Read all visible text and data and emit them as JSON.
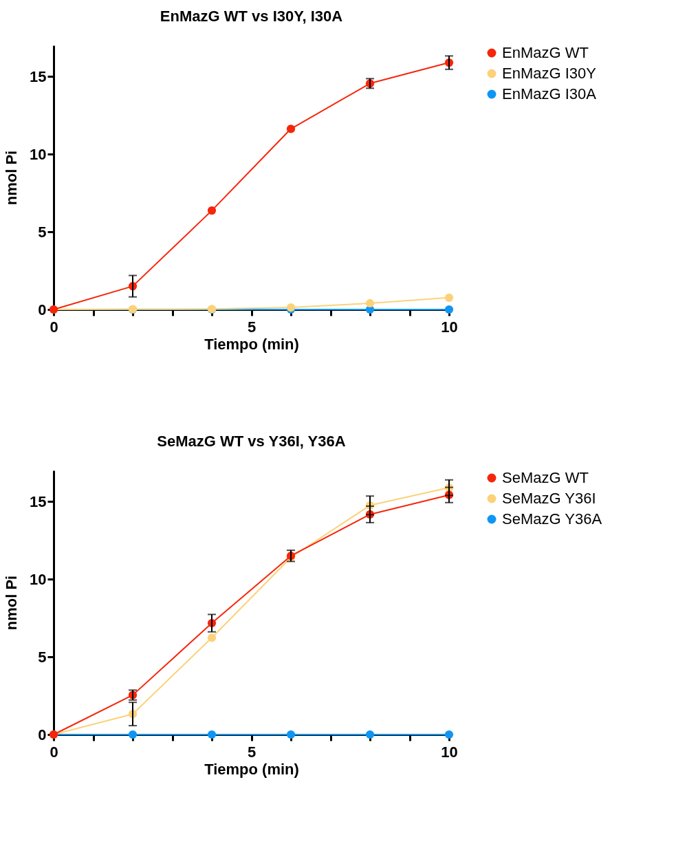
{
  "chart_data": [
    {
      "type": "line",
      "title": "EnMazG WT vs I30Y, I30A",
      "xlabel": "Tiempo (min)",
      "ylabel": "nmol Pi",
      "x": [
        0,
        2,
        4,
        6,
        8,
        10
      ],
      "xlim": [
        0,
        10
      ],
      "xticks": [
        0,
        {
          "value": 1,
          "label": null
        },
        {
          "value": 2,
          "label": null
        },
        {
          "value": 3,
          "label": null
        },
        {
          "value": 4,
          "label": null
        },
        5,
        {
          "value": 6,
          "label": null
        },
        {
          "value": 7,
          "label": null
        },
        {
          "value": 8,
          "label": null
        },
        {
          "value": 9,
          "label": null
        },
        10
      ],
      "ylim": [
        0,
        17
      ],
      "yticks": [
        0,
        5,
        10,
        15
      ],
      "grid": false,
      "legend": "top right",
      "marker": "circle",
      "line_style": "solid",
      "series": [
        {
          "name": "EnMazG WT",
          "color": "#f5260a",
          "values": [
            0,
            1.5,
            6.37,
            11.63,
            14.55,
            15.89
          ],
          "errors": [
            null,
            0.69,
            null,
            null,
            0.31,
            0.43
          ]
        },
        {
          "name": "EnMazG I30Y",
          "color": "#fbd27a",
          "values": [
            0,
            0.02,
            0.03,
            0.13,
            0.4,
            0.76
          ]
        },
        {
          "name": "EnMazG I30A",
          "color": "#0f96f5",
          "values": [
            0,
            0,
            0,
            0,
            0,
            0
          ]
        }
      ]
    },
    {
      "type": "line",
      "title": "SeMazG WT vs Y36I, Y36A",
      "xlabel": "Tiempo (min)",
      "ylabel": "nmol Pi",
      "x": [
        0,
        2,
        4,
        6,
        8,
        10
      ],
      "xlim": [
        0,
        10
      ],
      "xticks": [
        0,
        {
          "value": 1,
          "label": null
        },
        {
          "value": 2,
          "label": null
        },
        {
          "value": 3,
          "label": null
        },
        {
          "value": 4,
          "label": null
        },
        5,
        {
          "value": 6,
          "label": null
        },
        {
          "value": 7,
          "label": null
        },
        {
          "value": 8,
          "label": null
        },
        {
          "value": 9,
          "label": null
        },
        10
      ],
      "ylim": [
        0,
        17
      ],
      "yticks": [
        0,
        5,
        10,
        15
      ],
      "grid": false,
      "legend": "top right",
      "marker": "circle",
      "line_style": "solid",
      "series": [
        {
          "name": "SeMazG WT",
          "color": "#f5260a",
          "values": [
            0,
            2.54,
            7.17,
            11.5,
            14.17,
            15.42
          ],
          "errors": [
            null,
            0.32,
            0.56,
            0.36,
            0.53,
            0.49
          ]
        },
        {
          "name": "SeMazG Y36I",
          "color": "#fbd27a",
          "values": [
            0,
            1.32,
            6.23,
            11.4,
            14.75,
            15.89
          ],
          "errors": [
            null,
            0.75,
            null,
            null,
            0.6,
            0.5
          ]
        },
        {
          "name": "SeMazG Y36A",
          "color": "#0f96f5",
          "values": [
            0,
            0,
            0,
            0,
            0,
            0
          ]
        }
      ]
    }
  ]
}
